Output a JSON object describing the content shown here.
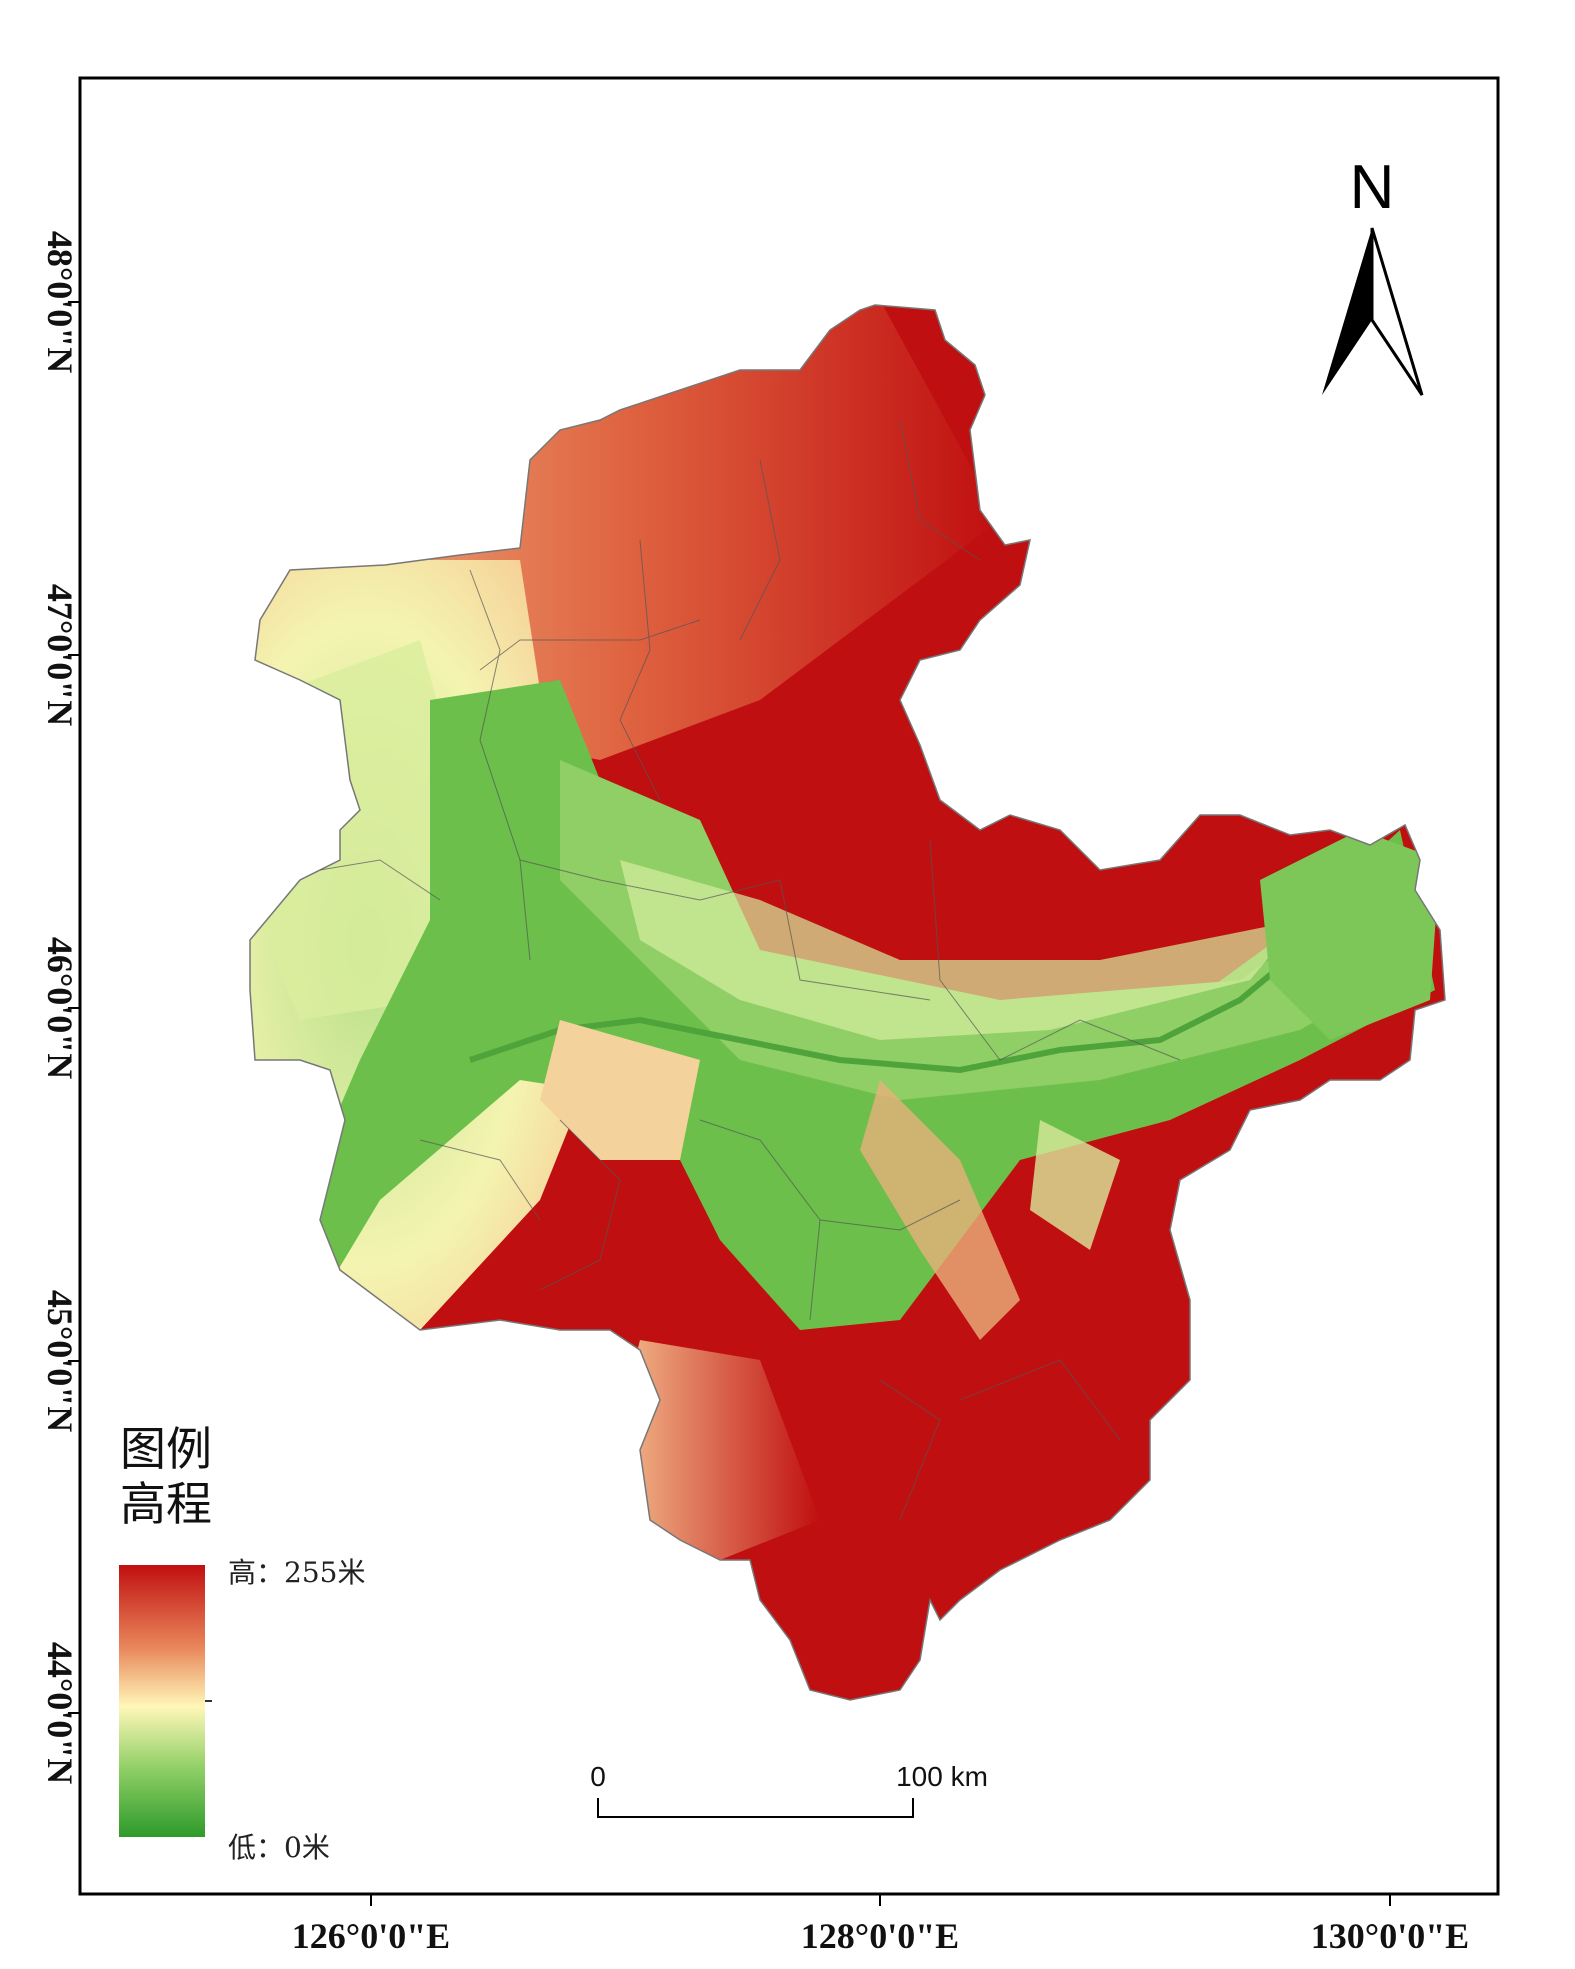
{
  "map": {
    "lat_ticks": [
      "48°0'0\"N",
      "47°0'0\"N",
      "46°0'0\"N",
      "45°0'0\"N",
      "44°0'0\"N"
    ],
    "lon_ticks": [
      "126°0'0\"E",
      "128°0'0\"E",
      "130°0'0\"E"
    ],
    "north_arrow": {
      "letter": "N",
      "icon": "north-arrow-icon"
    },
    "legend": {
      "title": "图例",
      "subtitle": "高程",
      "high_label": "高：255米",
      "low_label": "低：0米",
      "ramp_colors": [
        "#c00f10",
        "#e8855a",
        "#fff7b8",
        "#8fcf66",
        "#2e9a2a"
      ]
    },
    "scale_bar": {
      "start_label": "0",
      "end_label": "100 km"
    },
    "colors": {
      "high": "#c00f10",
      "mid": "#fff7b8",
      "low": "#2e9a2a"
    }
  }
}
